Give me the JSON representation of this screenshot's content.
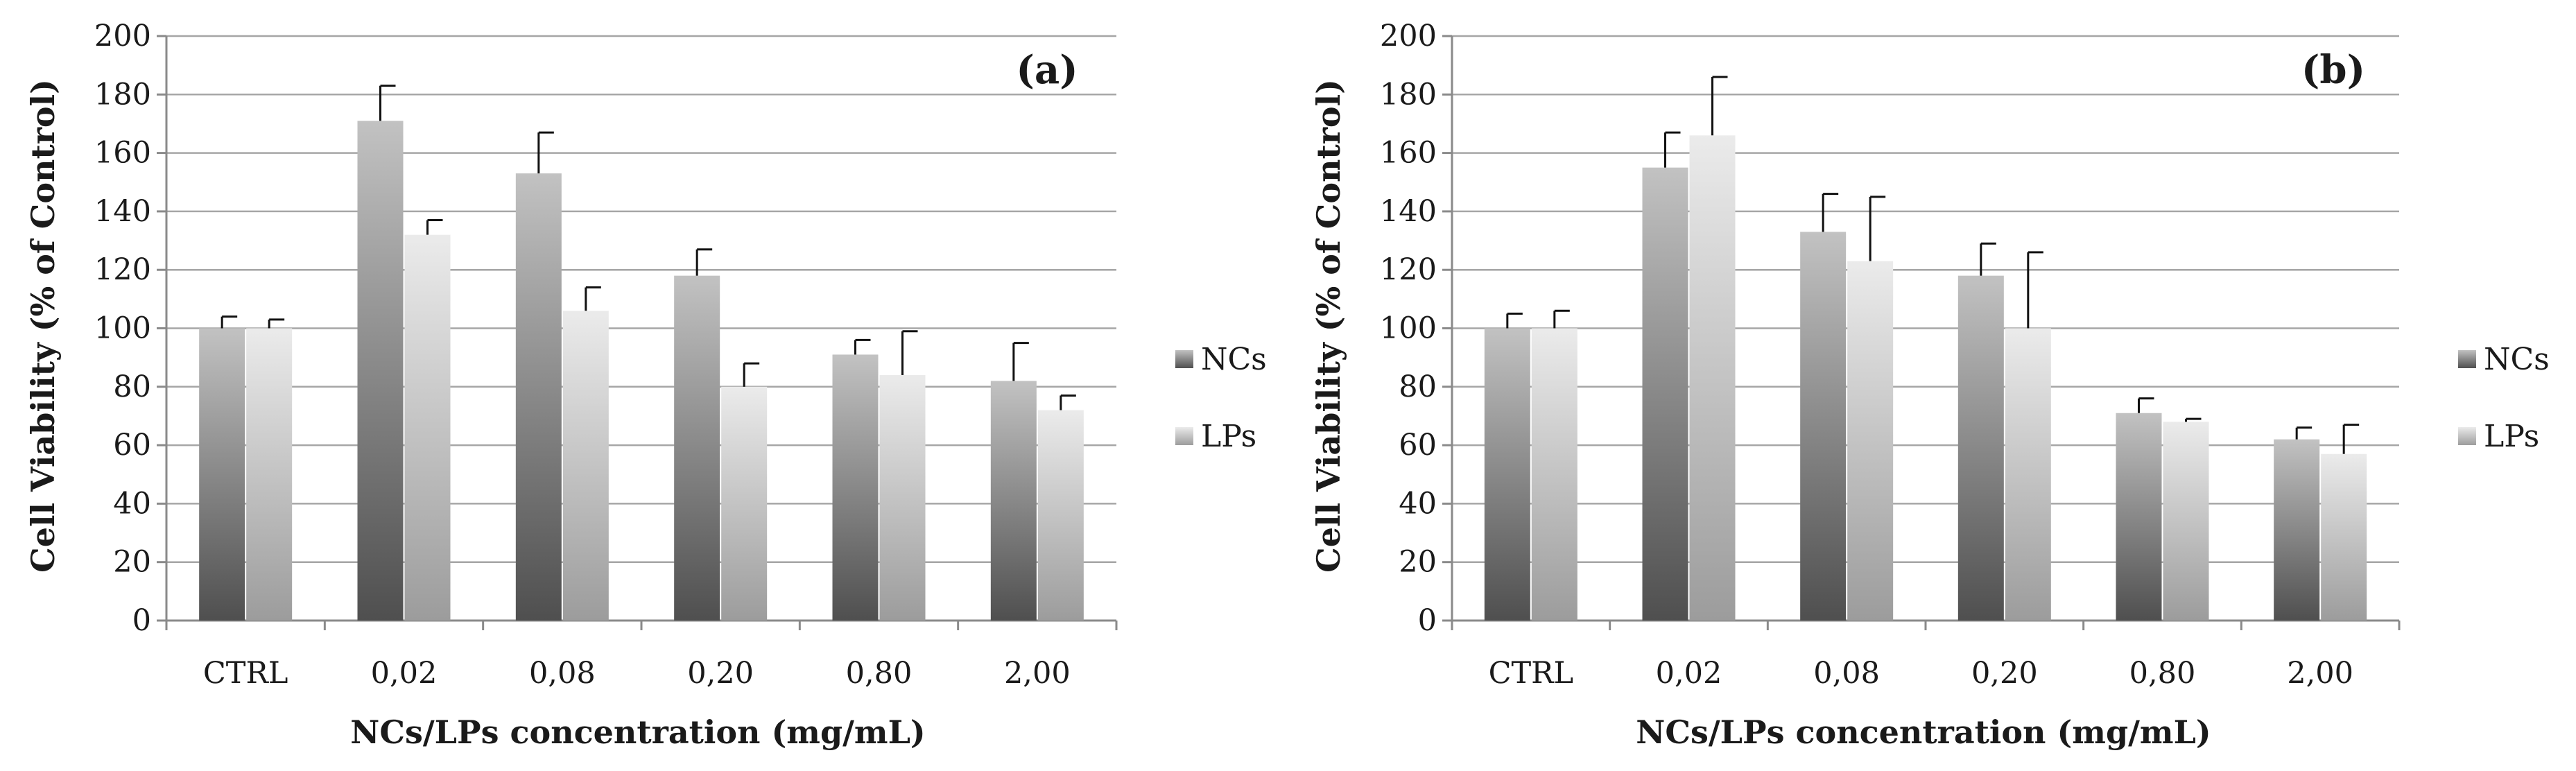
{
  "chart_data": [
    {
      "type": "bar",
      "panel_label": "(a)",
      "categories": [
        "CTRL",
        "0,02",
        "0,08",
        "0,20",
        "0,80",
        "2,00"
      ],
      "series": [
        {
          "name": "NCs",
          "values": [
            100,
            171,
            153,
            118,
            91,
            82
          ],
          "errors": [
            4,
            12,
            14,
            9,
            5,
            13
          ]
        },
        {
          "name": "LPs",
          "values": [
            100,
            132,
            106,
            80,
            84,
            72
          ],
          "errors": [
            3,
            5,
            8,
            8,
            15,
            5
          ]
        }
      ],
      "xlabel": "NCs/LPs concentration (mg/mL)",
      "ylabel": "Cell Viability  (% of Control)",
      "ylim": [
        0,
        200
      ],
      "yticks": [
        "0",
        "20",
        "40",
        "60",
        "80",
        "100",
        "120",
        "140",
        "160",
        "180",
        "200"
      ],
      "grid": true,
      "legend_position": "right"
    },
    {
      "type": "bar",
      "panel_label": "(b)",
      "categories": [
        "CTRL",
        "0,02",
        "0,08",
        "0,20",
        "0,80",
        "2,00"
      ],
      "series": [
        {
          "name": "NCs",
          "values": [
            100,
            155,
            133,
            118,
            71,
            62
          ],
          "errors": [
            5,
            12,
            13,
            11,
            5,
            4
          ]
        },
        {
          "name": "LPs",
          "values": [
            100,
            166,
            123,
            100,
            68,
            57
          ],
          "errors": [
            6,
            20,
            22,
            26,
            1,
            10
          ]
        }
      ],
      "xlabel": "NCs/LPs concentration (mg/mL)",
      "ylabel": "Cell Viability  (% of Control)",
      "ylim": [
        0,
        200
      ],
      "yticks": [
        "0",
        "20",
        "40",
        "60",
        "80",
        "100",
        "120",
        "140",
        "160",
        "180",
        "200"
      ],
      "grid": true,
      "legend_position": "right"
    }
  ],
  "colors": {
    "ncs_top": "#c2c2c2",
    "ncs_bottom": "#4f4f4f",
    "lps_top": "#ebebeb",
    "lps_bottom": "#9c9c9c"
  }
}
